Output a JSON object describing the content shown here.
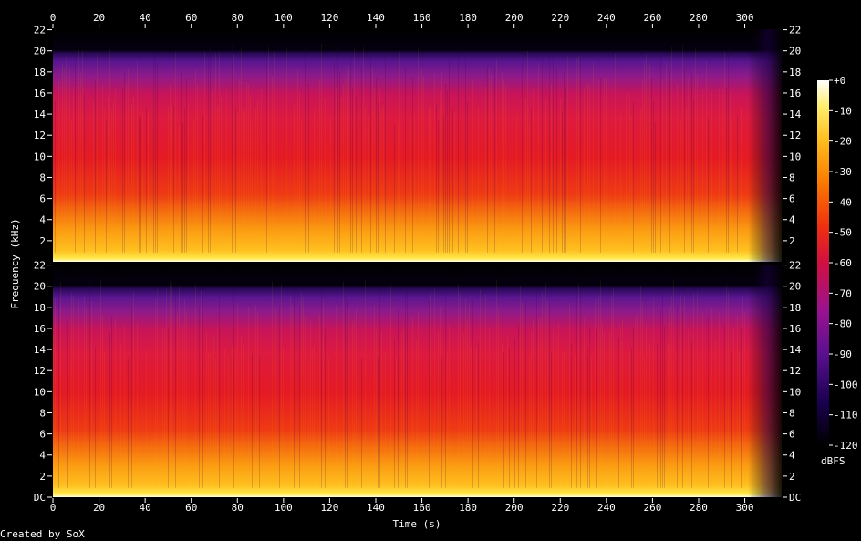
{
  "chart_data": {
    "type": "heatmap",
    "title": "",
    "xlabel": "Time (s)",
    "ylabel": "Frequency (kHz)",
    "x_range": [
      0,
      316
    ],
    "x_ticks": [
      "0",
      "20",
      "40",
      "60",
      "80",
      "100",
      "120",
      "140",
      "160",
      "180",
      "200",
      "220",
      "240",
      "260",
      "280",
      "300"
    ],
    "y_range_khz": [
      0,
      22.05
    ],
    "y_ticks_top_channel": [
      "22",
      "20",
      "18",
      "16",
      "14",
      "12",
      "10",
      "8",
      "6",
      "4",
      "2"
    ],
    "y_ticks_bottom_channel": [
      "22",
      "20",
      "18",
      "16",
      "14",
      "12",
      "10",
      "8",
      "6",
      "4",
      "2",
      "DC"
    ],
    "channels": 2,
    "energy_cutoff_khz": 20,
    "track_fade_out_start_s": 300,
    "track_end_s": 315,
    "colorbar": {
      "unit": "dBFS",
      "range": [
        -120,
        0
      ],
      "ticks": [
        "+0",
        "-10",
        "-20",
        "-30",
        "-40",
        "-50",
        "-60",
        "-70",
        "-80",
        "-90",
        "-100",
        "-110",
        "-120"
      ],
      "colors": [
        "#000000",
        "#1a0050",
        "#5a1090",
        "#9a1290",
        "#d01040",
        "#f03010",
        "#fa7a00",
        "#ffc020",
        "#ffee70",
        "#ffffff"
      ]
    }
  },
  "footer": {
    "credit": "Created by SoX"
  }
}
